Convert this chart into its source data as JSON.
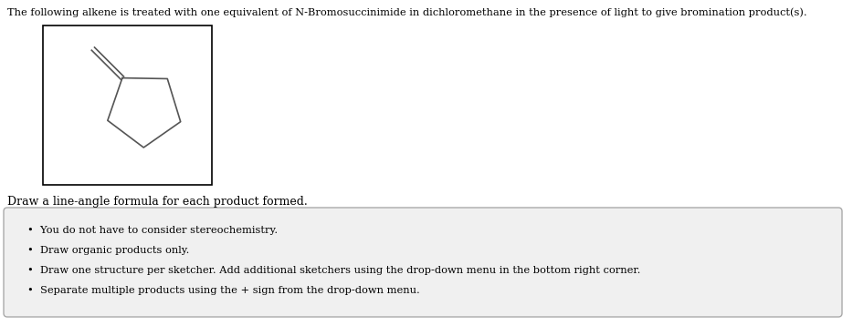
{
  "title_text": "The following alkene is treated with one equivalent of N-Bromosuccinimide in dichloromethane in the presence of light to give bromination product(s).",
  "subtitle_text": "Draw a line-angle formula for each product formed.",
  "bullet_points": [
    "You do not have to consider stereochemistry.",
    "Draw organic products only.",
    "Draw one structure per sketcher. Add additional sketchers using the drop-down menu in the bottom right corner.",
    "Separate multiple products using the + sign from the drop-down menu."
  ],
  "bg_color": "#ffffff",
  "box_bg_color": "#f0f0f0",
  "box_border_color": "#aaaaaa",
  "text_color": "#000000",
  "molecule_color": "#555555",
  "sketcher_box_color": "#000000",
  "fig_width": 9.34,
  "fig_height": 3.58,
  "dpi": 100
}
